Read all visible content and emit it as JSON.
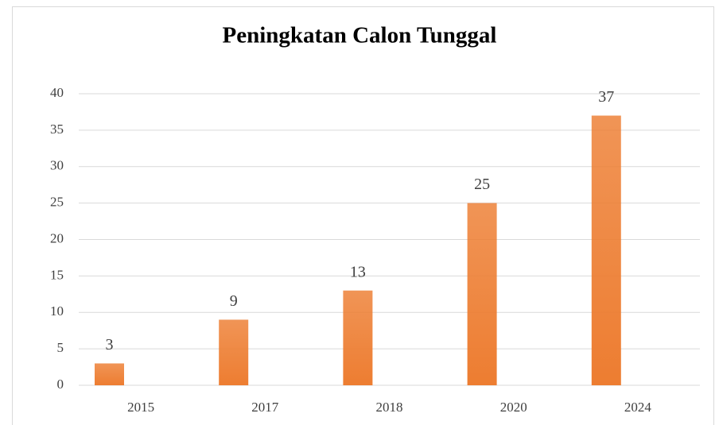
{
  "chart_data": {
    "type": "bar",
    "title": "Peningkatan Calon Tunggal",
    "categories": [
      "2015",
      "2017",
      "2018",
      "2020",
      "2024"
    ],
    "values": [
      3,
      9,
      13,
      25,
      37
    ],
    "color": "#ed7d31",
    "ylim": [
      0,
      40
    ],
    "yticks": [
      0,
      5,
      10,
      15,
      20,
      25,
      30,
      35,
      40
    ],
    "grid": true
  }
}
